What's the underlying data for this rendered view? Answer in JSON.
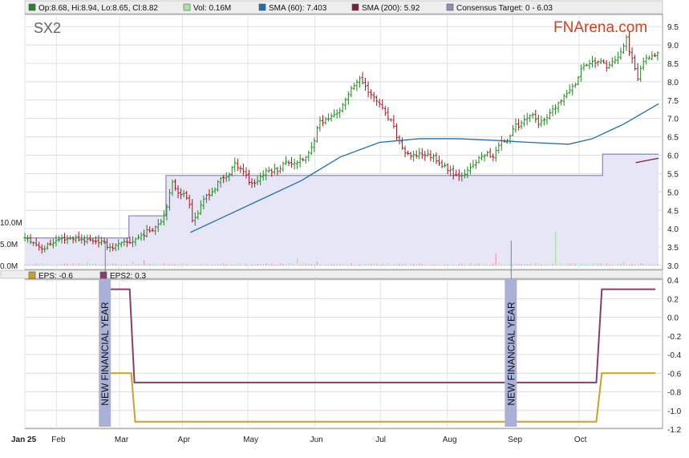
{
  "chart_data": [
    {
      "type": "ohlc",
      "panel": "price",
      "ticker": "SX2",
      "watermark": "FNArena.com",
      "legend": [
        {
          "key": "ohlc",
          "label": "Op:8.68, Hi:8.94, Lo:8.65, Cl:8.82",
          "color": "#2e7d32"
        },
        {
          "key": "vol",
          "label": "Vol: 0.16M",
          "color": "#a5e6a0"
        },
        {
          "key": "sma60",
          "label": "SMA (60): 7.403",
          "color": "#1f6fb0"
        },
        {
          "key": "sma200",
          "label": "SMA (200): 5.92",
          "color": "#7a1f3a"
        },
        {
          "key": "target",
          "label": "Consensus Target: 0 - 6.03",
          "color": "#8e8fb8"
        }
      ],
      "x_axis": {
        "labels": [
          "Jan 25",
          "Feb",
          "Mar",
          "Apr",
          "May",
          "Jun",
          "Jul",
          "Aug",
          "Sep",
          "Oct"
        ],
        "label_days": [
          0,
          40,
          120,
          200,
          283,
          368,
          451,
          536,
          619,
          703
        ]
      },
      "y_axis": {
        "min": 3.0,
        "max": 9.7,
        "ticks": [
          "3.0",
          "3.5",
          "4.0",
          "4.5",
          "5.0",
          "5.5",
          "6.0",
          "6.5",
          "7.0",
          "7.5",
          "8.0",
          "8.5",
          "9.0",
          "9.5"
        ]
      },
      "volume_axis": {
        "labels": [
          "10.0M",
          "5.0M",
          "0.0M"
        ],
        "values_m": [
          10,
          5,
          0
        ]
      },
      "close_anchors": [
        [
          0,
          3.75
        ],
        [
          8,
          3.65
        ],
        [
          16,
          3.55
        ],
        [
          24,
          3.45
        ],
        [
          32,
          3.6
        ],
        [
          45,
          3.72
        ],
        [
          60,
          3.75
        ],
        [
          75,
          3.7
        ],
        [
          90,
          3.68
        ],
        [
          100,
          3.6
        ],
        [
          110,
          3.48
        ],
        [
          118,
          3.55
        ],
        [
          125,
          3.6
        ],
        [
          135,
          3.65
        ],
        [
          150,
          3.85
        ],
        [
          165,
          4.05
        ],
        [
          175,
          4.3
        ],
        [
          182,
          4.8
        ],
        [
          188,
          5.3
        ],
        [
          192,
          5.05
        ],
        [
          200,
          4.95
        ],
        [
          208,
          4.8
        ],
        [
          213,
          4.2
        ],
        [
          220,
          4.45
        ],
        [
          230,
          4.9
        ],
        [
          240,
          5.05
        ],
        [
          248,
          5.35
        ],
        [
          258,
          5.45
        ],
        [
          265,
          5.75
        ],
        [
          272,
          5.7
        ],
        [
          280,
          5.5
        ],
        [
          285,
          5.25
        ],
        [
          292,
          5.25
        ],
        [
          300,
          5.45
        ],
        [
          310,
          5.6
        ],
        [
          320,
          5.6
        ],
        [
          330,
          5.8
        ],
        [
          340,
          5.8
        ],
        [
          350,
          5.85
        ],
        [
          358,
          5.95
        ],
        [
          365,
          6.25
        ],
        [
          372,
          6.9
        ],
        [
          382,
          6.95
        ],
        [
          392,
          7.1
        ],
        [
          400,
          7.25
        ],
        [
          408,
          7.5
        ],
        [
          415,
          7.9
        ],
        [
          425,
          8.05
        ],
        [
          432,
          7.9
        ],
        [
          440,
          7.6
        ],
        [
          450,
          7.4
        ],
        [
          457,
          7.1
        ],
        [
          465,
          6.9
        ],
        [
          472,
          6.5
        ],
        [
          478,
          6.25
        ],
        [
          484,
          6.0
        ],
        [
          492,
          5.95
        ],
        [
          500,
          6.05
        ],
        [
          510,
          6.0
        ],
        [
          520,
          5.95
        ],
        [
          530,
          5.7
        ],
        [
          540,
          5.6
        ],
        [
          546,
          5.45
        ],
        [
          554,
          5.5
        ],
        [
          562,
          5.55
        ],
        [
          570,
          5.75
        ],
        [
          578,
          5.95
        ],
        [
          586,
          6.05
        ],
        [
          592,
          5.9
        ],
        [
          598,
          6.15
        ],
        [
          605,
          6.35
        ],
        [
          613,
          6.45
        ],
        [
          620,
          6.8
        ],
        [
          628,
          6.8
        ],
        [
          636,
          7.05
        ],
        [
          645,
          7.1
        ],
        [
          652,
          6.85
        ],
        [
          660,
          6.95
        ],
        [
          668,
          7.15
        ],
        [
          676,
          7.4
        ],
        [
          684,
          7.55
        ],
        [
          692,
          7.85
        ],
        [
          700,
          8.0
        ],
        [
          708,
          8.45
        ],
        [
          716,
          8.5
        ],
        [
          722,
          8.55
        ],
        [
          726,
          8.55
        ],
        [
          734,
          8.5
        ],
        [
          740,
          8.4
        ],
        [
          746,
          8.55
        ],
        [
          752,
          8.65
        ],
        [
          758,
          8.85
        ],
        [
          763,
          9.25
        ],
        [
          766,
          8.85
        ],
        [
          772,
          8.5
        ],
        [
          778,
          8.0
        ],
        [
          782,
          8.5
        ],
        [
          788,
          8.7
        ],
        [
          796,
          8.7
        ],
        [
          804,
          8.82
        ]
      ],
      "sma60": [
        [
          210,
          3.9
        ],
        [
          250,
          4.3
        ],
        [
          300,
          4.8
        ],
        [
          350,
          5.3
        ],
        [
          400,
          5.95
        ],
        [
          450,
          6.35
        ],
        [
          500,
          6.45
        ],
        [
          550,
          6.45
        ],
        [
          600,
          6.4
        ],
        [
          640,
          6.35
        ],
        [
          690,
          6.3
        ],
        [
          720,
          6.45
        ],
        [
          760,
          6.85
        ],
        [
          804,
          7.4
        ]
      ],
      "sma200": [
        [
          775,
          5.8
        ],
        [
          804,
          5.92
        ]
      ],
      "consensus_target": [
        [
          0,
          3.75
        ],
        [
          132,
          3.75
        ],
        [
          132,
          4.35
        ],
        [
          179,
          4.35
        ],
        [
          179,
          5.45
        ],
        [
          733,
          5.45
        ],
        [
          733,
          6.03
        ],
        [
          804,
          6.03
        ]
      ],
      "volume_spikes_m": [
        [
          78,
          0.9
        ],
        [
          135,
          1.0
        ],
        [
          150,
          1.2
        ],
        [
          345,
          1.6
        ],
        [
          370,
          0.9
        ],
        [
          597,
          2.8
        ],
        [
          672,
          7.8
        ],
        [
          760,
          0.9
        ]
      ]
    },
    {
      "type": "line",
      "panel": "eps",
      "legend": [
        {
          "key": "eps",
          "label": "EPS: -0.6",
          "color": "#c9a227"
        },
        {
          "key": "eps2",
          "label": "EPS2: 0.3",
          "color": "#8a3c6c"
        }
      ],
      "y_axis": {
        "min": -1.2,
        "max": 0.4,
        "ticks": [
          "0.4",
          "0.2",
          "0.0",
          "-0.2",
          "-0.4",
          "-0.6",
          "-0.8",
          "-1.0",
          "-1.2"
        ]
      },
      "series": [
        {
          "name": "EPS",
          "points": [
            [
              95,
              -0.6
            ],
            [
              135,
              -0.6
            ],
            [
              140,
              -1.12
            ],
            [
              725,
              -1.12
            ],
            [
              732,
              -0.6
            ],
            [
              800,
              -0.6
            ]
          ]
        },
        {
          "name": "EPS2",
          "points": [
            [
              95,
              0.3
            ],
            [
              133,
              0.3
            ],
            [
              139,
              -0.7
            ],
            [
              725,
              -0.7
            ],
            [
              732,
              0.3
            ],
            [
              800,
              0.3
            ]
          ]
        }
      ],
      "markers": [
        {
          "label": "NEW FINANCIAL YEAR",
          "day": 102
        },
        {
          "label": "NEW FINANCIAL YEAR",
          "day": 617
        }
      ]
    }
  ]
}
